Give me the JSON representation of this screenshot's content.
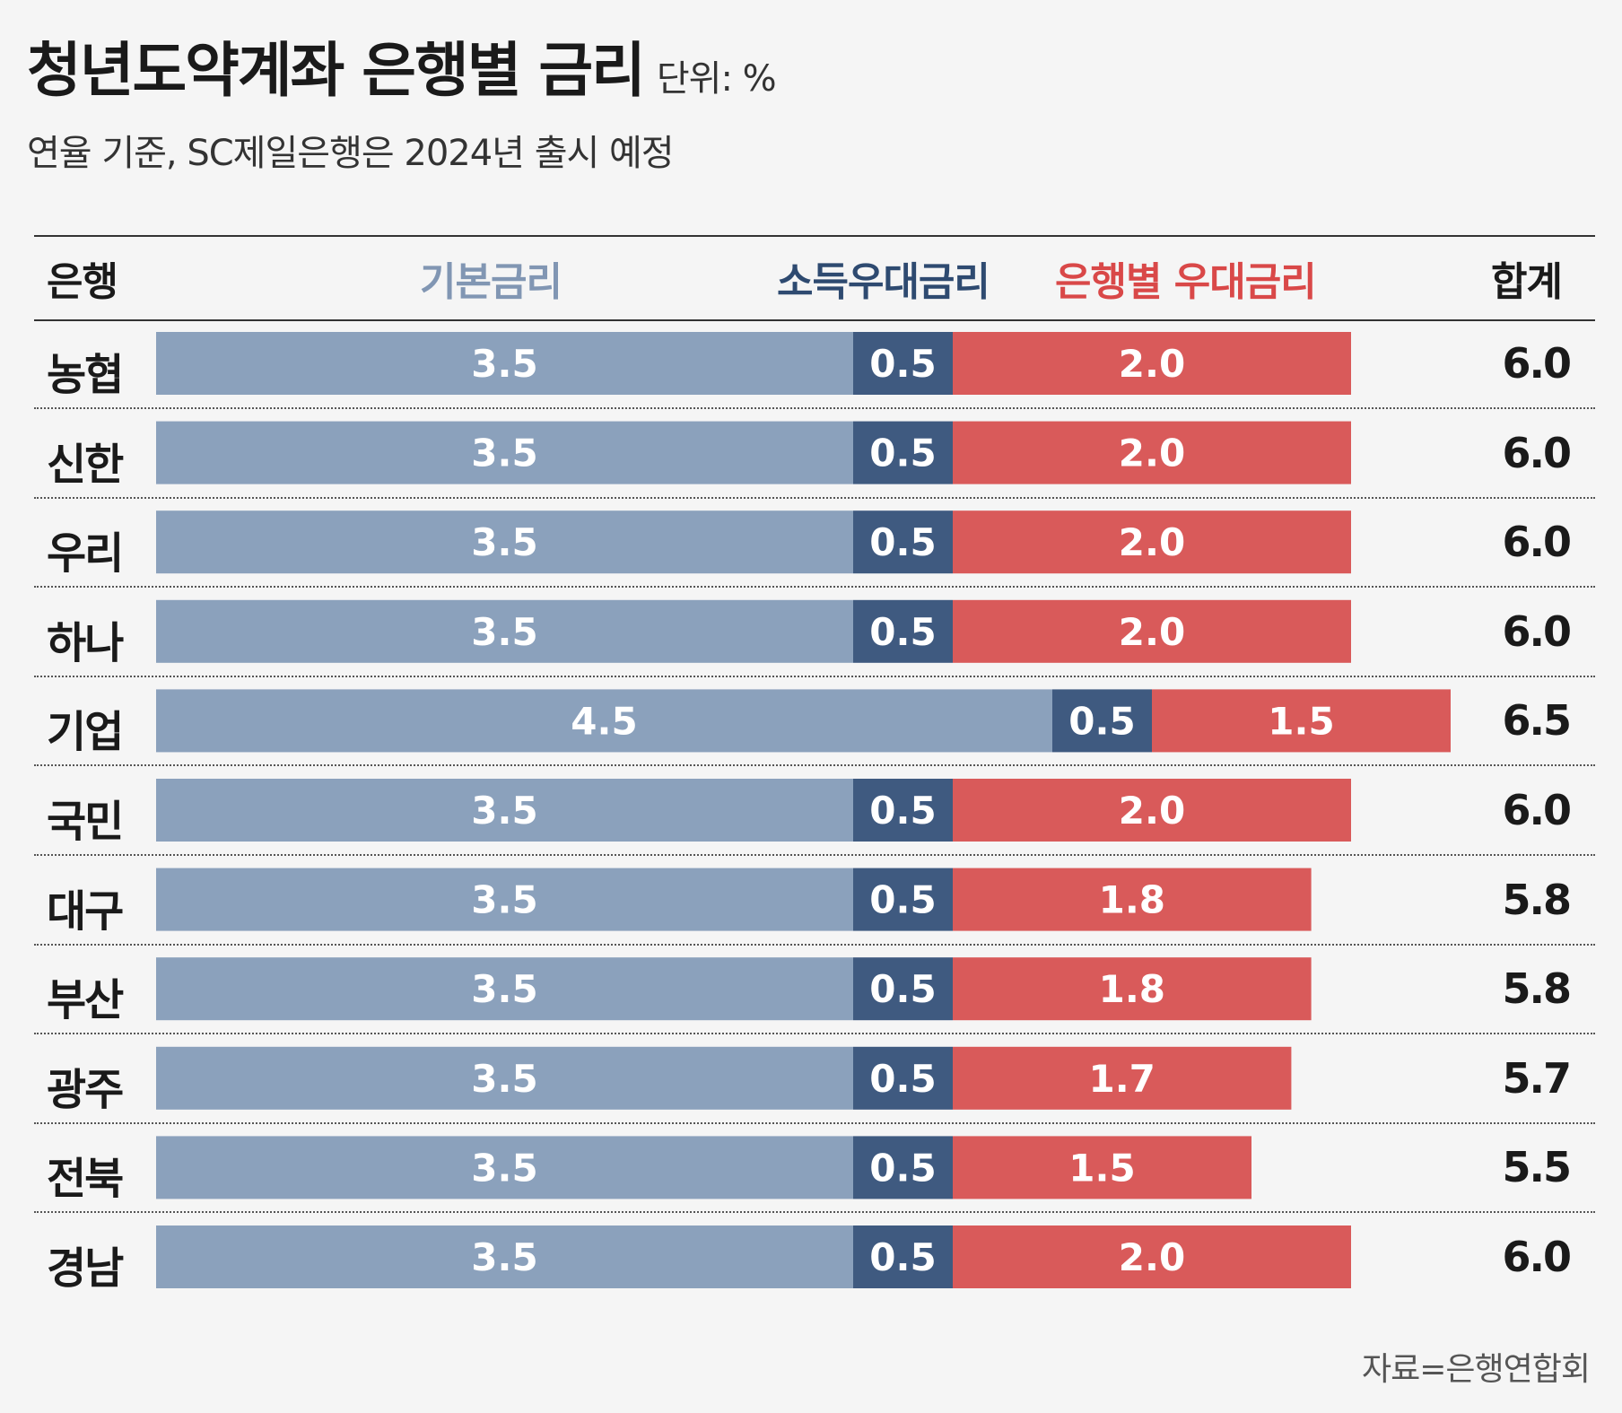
{
  "header": {
    "title": "청년도약계좌 은행별 금리",
    "unit": "단위: %",
    "subtitle": "연율 기준, SC제일은행은 2024년 출시 예정"
  },
  "columns": {
    "bank": "은행",
    "base": "기본금리",
    "income": "소득우대금리",
    "bank_pref": "은행별 우대금리",
    "total": "합계"
  },
  "colors": {
    "base": "#8ba1bc",
    "income": "#3f5a80",
    "bank_pref": "#d95a5a",
    "income_header": "#2e4a70",
    "bank_pref_header": "#d94848",
    "base_header": "#8196b3"
  },
  "chart_data": {
    "type": "bar",
    "orientation": "horizontal",
    "stacked": true,
    "categories": [
      "농협",
      "신한",
      "우리",
      "하나",
      "기업",
      "국민",
      "대구",
      "부산",
      "광주",
      "전북",
      "경남"
    ],
    "series": [
      {
        "name": "기본금리",
        "values": [
          3.5,
          3.5,
          3.5,
          3.5,
          4.5,
          3.5,
          3.5,
          3.5,
          3.5,
          3.5,
          3.5
        ]
      },
      {
        "name": "소득우대금리",
        "values": [
          0.5,
          0.5,
          0.5,
          0.5,
          0.5,
          0.5,
          0.5,
          0.5,
          0.5,
          0.5,
          0.5
        ]
      },
      {
        "name": "은행별 우대금리",
        "values": [
          2.0,
          2.0,
          2.0,
          2.0,
          1.5,
          2.0,
          1.8,
          1.8,
          1.7,
          1.5,
          2.0
        ]
      }
    ],
    "totals": [
      "6.0",
      "6.0",
      "6.0",
      "6.0",
      "6.5",
      "6.0",
      "5.8",
      "5.8",
      "5.7",
      "5.5",
      "6.0"
    ],
    "labels": [
      [
        "3.5",
        "0.5",
        "2.0"
      ],
      [
        "3.5",
        "0.5",
        "2.0"
      ],
      [
        "3.5",
        "0.5",
        "2.0"
      ],
      [
        "3.5",
        "0.5",
        "2.0"
      ],
      [
        "4.5",
        "0.5",
        "1.5"
      ],
      [
        "3.5",
        "0.5",
        "2.0"
      ],
      [
        "3.5",
        "0.5",
        "1.8"
      ],
      [
        "3.5",
        "0.5",
        "1.8"
      ],
      [
        "3.5",
        "0.5",
        "1.7"
      ],
      [
        "3.5",
        "0.5",
        "1.5"
      ],
      [
        "3.5",
        "0.5",
        "2.0"
      ]
    ],
    "xlim": [
      0,
      6.5
    ]
  },
  "footer": {
    "source": "자료=은행연합회"
  }
}
